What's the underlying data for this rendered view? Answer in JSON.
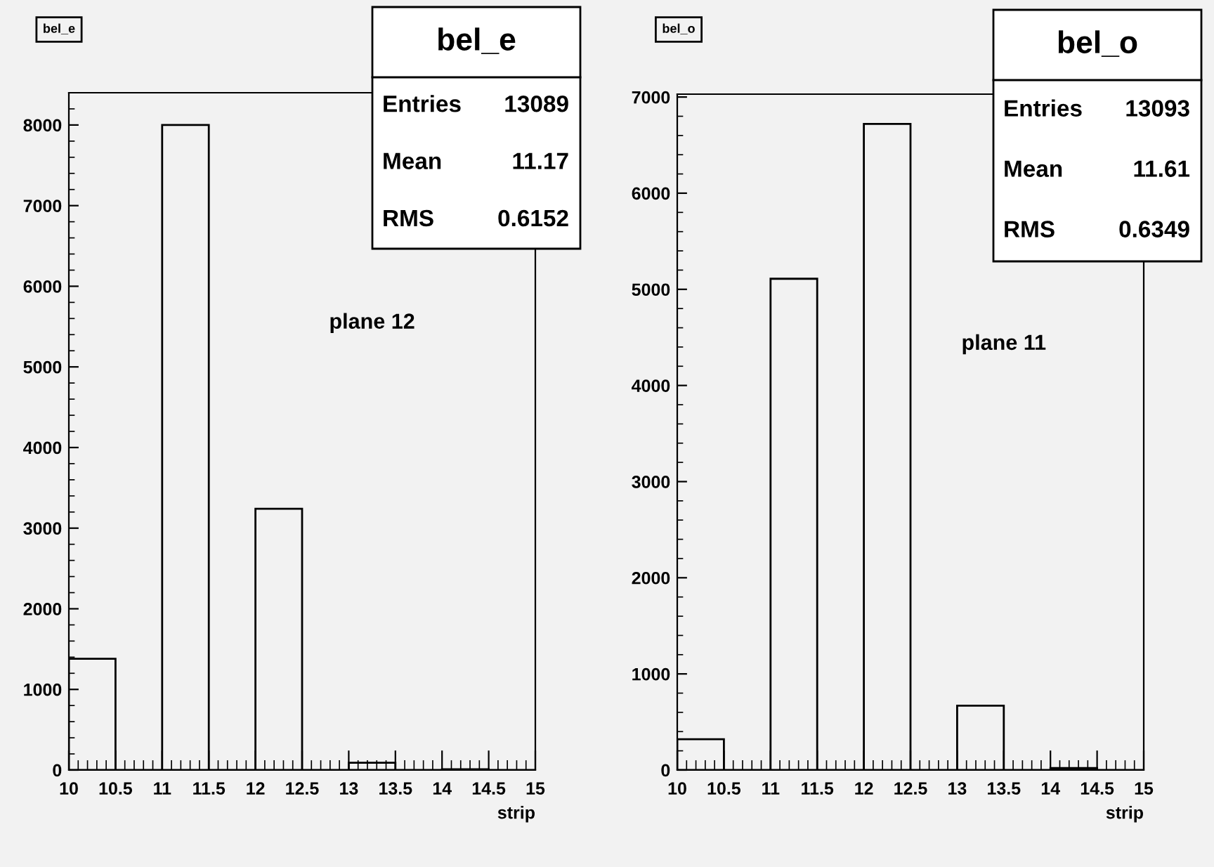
{
  "chart_data": [
    {
      "type": "histogram",
      "title": "bel_e",
      "xlabel": "strip",
      "color": "#000000",
      "bins": [
        10,
        10.5,
        11,
        11.5,
        12,
        12.5,
        13,
        13.5,
        14,
        14.5,
        15
      ],
      "values": [
        1380,
        0,
        8000,
        0,
        3240,
        0,
        90,
        0,
        10,
        0
      ],
      "xlim": [
        10,
        15
      ],
      "ylim": [
        0,
        8400
      ],
      "xticks": [
        10,
        10.5,
        11,
        11.5,
        12,
        12.5,
        13,
        13.5,
        14,
        14.5,
        15
      ],
      "yticks": [
        0,
        1000,
        2000,
        3000,
        4000,
        5000,
        6000,
        7000,
        8000
      ],
      "grid": false,
      "annotations": [
        "bel_e",
        "Entries",
        "13089",
        "Mean",
        "11.17",
        "RMS",
        "0.6152",
        "plane 12"
      ]
    },
    {
      "type": "histogram",
      "title": "bel_o",
      "xlabel": "strip",
      "color": "#000000",
      "bins": [
        10,
        10.5,
        11,
        11.5,
        12,
        12.5,
        13,
        13.5,
        14,
        14.5,
        15
      ],
      "values": [
        320,
        0,
        5110,
        0,
        6720,
        0,
        670,
        0,
        20,
        0
      ],
      "xlim": [
        10,
        15
      ],
      "ylim": [
        0,
        7030
      ],
      "xticks": [
        10,
        10.5,
        11,
        11.5,
        12,
        12.5,
        13,
        13.5,
        14,
        14.5,
        15
      ],
      "yticks": [
        0,
        1000,
        2000,
        3000,
        4000,
        5000,
        6000,
        7000
      ],
      "grid": false,
      "annotations": [
        "bel_o",
        "Entries",
        "13093",
        "Mean",
        "11.61",
        "RMS",
        "0.6349",
        "plane 11"
      ]
    }
  ]
}
